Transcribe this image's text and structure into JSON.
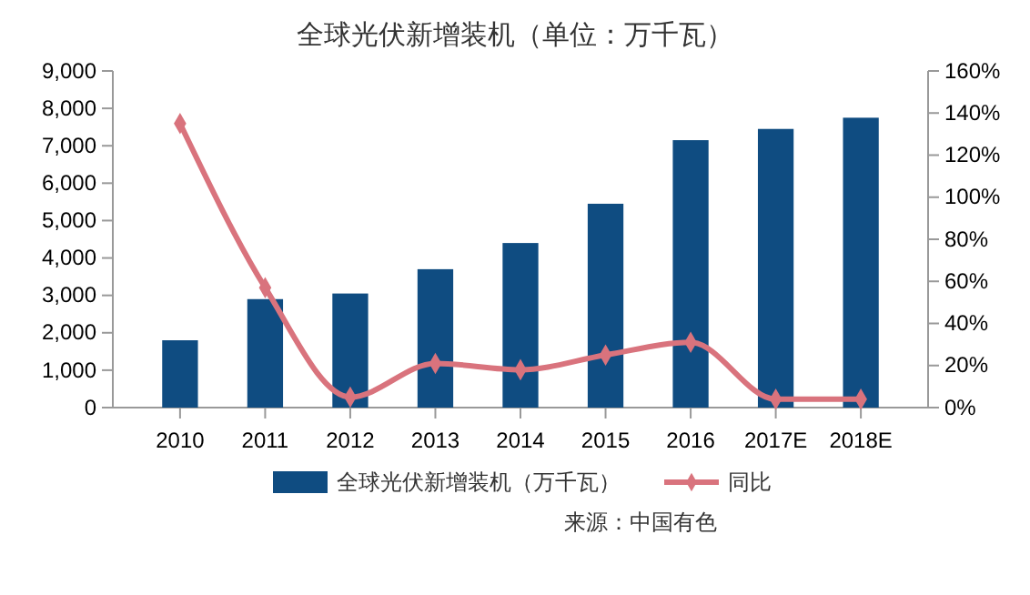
{
  "chart_data": {
    "type": "bar",
    "title": "全球光伏新增装机（单位：万千瓦）",
    "categories": [
      "2010",
      "2011",
      "2012",
      "2013",
      "2014",
      "2015",
      "2016",
      "2017E",
      "2018E"
    ],
    "series": [
      {
        "name": "全球光伏新增装机（万千瓦）",
        "color": "#0f4c81",
        "values": [
          1800,
          2900,
          3050,
          3700,
          4400,
          5450,
          7150,
          7450,
          7750
        ]
      },
      {
        "name": "同比",
        "type": "line",
        "axis": "y2",
        "color": "#d9737d",
        "values": [
          135,
          57,
          5,
          21,
          18,
          25,
          31,
          4,
          4
        ]
      }
    ],
    "ylim": [
      0,
      9000
    ],
    "yticks": [
      {
        "value": 0,
        "label": "0"
      },
      {
        "value": 1000,
        "label": "1,000"
      },
      {
        "value": 2000,
        "label": "2,000"
      },
      {
        "value": 3000,
        "label": "3,000"
      },
      {
        "value": 4000,
        "label": "4,000"
      },
      {
        "value": 5000,
        "label": "5,000"
      },
      {
        "value": 6000,
        "label": "6,000"
      },
      {
        "value": 7000,
        "label": "7,000"
      },
      {
        "value": 8000,
        "label": "8,000"
      },
      {
        "value": 9000,
        "label": "9,000"
      }
    ],
    "y2lim": [
      0,
      160
    ],
    "y2ticks": [
      {
        "value": 0,
        "label": "0%"
      },
      {
        "value": 20,
        "label": "20%"
      },
      {
        "value": 40,
        "label": "40%"
      },
      {
        "value": 60,
        "label": "60%"
      },
      {
        "value": 80,
        "label": "80%"
      },
      {
        "value": 100,
        "label": "100%"
      },
      {
        "value": 120,
        "label": "120%"
      },
      {
        "value": 140,
        "label": "140%"
      },
      {
        "value": 160,
        "label": "160%"
      }
    ],
    "marker": "diamond",
    "legend": "bottom",
    "annotations": [
      "来源：中国有色"
    ]
  }
}
